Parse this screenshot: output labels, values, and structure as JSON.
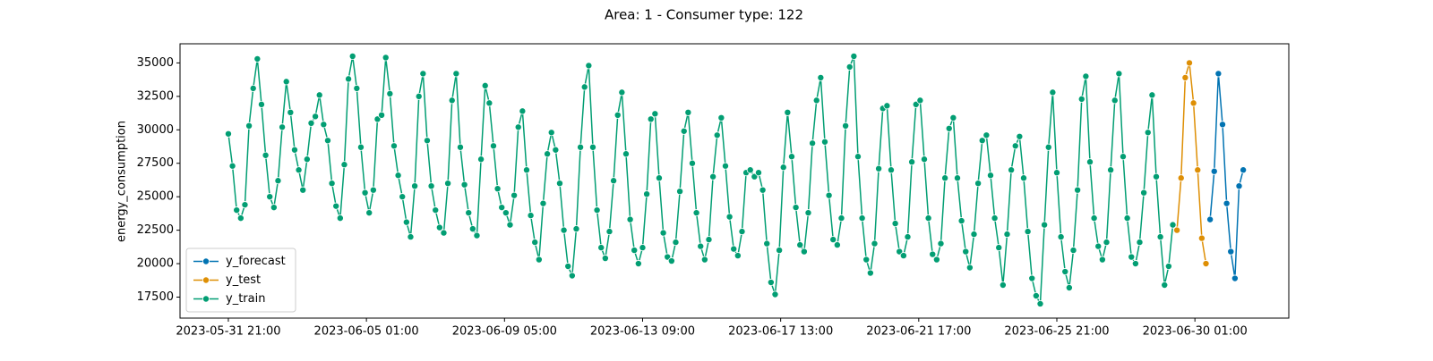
{
  "chart_data": {
    "type": "line",
    "title": "Area: 1 - Consumer type: 122",
    "ylabel": "energy_consumption",
    "xlim": [
      "2023-05-30 10:00",
      "2023-07-02 21:00"
    ],
    "xticks": [
      "2023-05-31 21:00",
      "2023-06-05 01:00",
      "2023-06-09 05:00",
      "2023-06-13 09:00",
      "2023-06-17 13:00",
      "2023-06-21 17:00",
      "2023-06-25 21:00",
      "2023-06-30 01:00"
    ],
    "ylim": [
      15930,
      36430
    ],
    "yticks": [
      17500,
      20000,
      22500,
      25000,
      27500,
      30000,
      32500,
      35000
    ],
    "legend": "lower left",
    "series": [
      {
        "name": "y_forecast",
        "color": "#0173b2",
        "x": [
          "2023-06-30 12:00",
          "2023-06-30 15:00",
          "2023-06-30 18:00",
          "2023-06-30 21:00",
          "2023-07-01 00:00",
          "2023-07-01 03:00",
          "2023-07-01 06:00",
          "2023-07-01 09:00",
          "2023-07-01 12:00"
        ],
        "values": [
          23300,
          26900,
          34200,
          30400,
          24500,
          20900,
          18900,
          25800,
          27000
        ]
      },
      {
        "name": "y_test",
        "color": "#de8f05",
        "x": [
          "2023-06-29 12:00",
          "2023-06-29 15:00",
          "2023-06-29 18:00",
          "2023-06-29 21:00",
          "2023-06-30 00:00",
          "2023-06-30 03:00",
          "2023-06-30 06:00",
          "2023-06-30 09:00"
        ],
        "values": [
          22500,
          26400,
          33900,
          35000,
          32000,
          27000,
          21900,
          20000
        ]
      },
      {
        "name": "y_train",
        "color": "#029e73",
        "x": [
          "2023-05-31 21:00",
          "2023-06-01 00:00",
          "2023-06-01 03:00",
          "2023-06-01 06:00",
          "2023-06-01 09:00",
          "2023-06-01 12:00",
          "2023-06-01 15:00",
          "2023-06-01 18:00",
          "2023-06-01 21:00",
          "2023-06-02 00:00",
          "2023-06-02 03:00",
          "2023-06-02 06:00",
          "2023-06-02 09:00",
          "2023-06-02 12:00",
          "2023-06-02 15:00",
          "2023-06-02 18:00",
          "2023-06-02 21:00",
          "2023-06-03 00:00",
          "2023-06-03 03:00",
          "2023-06-03 06:00",
          "2023-06-03 09:00",
          "2023-06-03 12:00",
          "2023-06-03 15:00",
          "2023-06-03 18:00",
          "2023-06-03 21:00",
          "2023-06-04 00:00",
          "2023-06-04 03:00",
          "2023-06-04 06:00",
          "2023-06-04 09:00",
          "2023-06-04 12:00",
          "2023-06-04 15:00",
          "2023-06-04 18:00",
          "2023-06-04 21:00",
          "2023-06-05 00:00",
          "2023-06-05 03:00",
          "2023-06-05 06:00",
          "2023-06-05 09:00",
          "2023-06-05 12:00",
          "2023-06-05 15:00",
          "2023-06-05 18:00",
          "2023-06-05 21:00",
          "2023-06-06 00:00",
          "2023-06-06 03:00",
          "2023-06-06 06:00",
          "2023-06-06 09:00",
          "2023-06-06 12:00",
          "2023-06-06 15:00",
          "2023-06-06 18:00",
          "2023-06-06 21:00",
          "2023-06-07 00:00",
          "2023-06-07 03:00",
          "2023-06-07 06:00",
          "2023-06-07 09:00",
          "2023-06-07 12:00",
          "2023-06-07 15:00",
          "2023-06-07 18:00",
          "2023-06-07 21:00",
          "2023-06-08 00:00",
          "2023-06-08 03:00",
          "2023-06-08 06:00",
          "2023-06-08 09:00",
          "2023-06-08 12:00",
          "2023-06-08 15:00",
          "2023-06-08 18:00",
          "2023-06-08 21:00",
          "2023-06-09 00:00",
          "2023-06-09 03:00",
          "2023-06-09 06:00",
          "2023-06-09 09:00",
          "2023-06-09 12:00",
          "2023-06-09 15:00",
          "2023-06-09 18:00",
          "2023-06-09 21:00",
          "2023-06-10 00:00",
          "2023-06-10 03:00",
          "2023-06-10 06:00",
          "2023-06-10 09:00",
          "2023-06-10 12:00",
          "2023-06-10 15:00",
          "2023-06-10 18:00",
          "2023-06-10 21:00",
          "2023-06-11 00:00",
          "2023-06-11 03:00",
          "2023-06-11 06:00",
          "2023-06-11 09:00",
          "2023-06-11 12:00",
          "2023-06-11 15:00",
          "2023-06-11 18:00",
          "2023-06-11 21:00",
          "2023-06-12 00:00",
          "2023-06-12 03:00",
          "2023-06-12 06:00",
          "2023-06-12 09:00",
          "2023-06-12 12:00",
          "2023-06-12 15:00",
          "2023-06-12 18:00",
          "2023-06-12 21:00",
          "2023-06-13 00:00",
          "2023-06-13 03:00",
          "2023-06-13 06:00",
          "2023-06-13 09:00",
          "2023-06-13 12:00",
          "2023-06-13 15:00",
          "2023-06-13 18:00",
          "2023-06-13 21:00",
          "2023-06-14 00:00",
          "2023-06-14 03:00",
          "2023-06-14 06:00",
          "2023-06-14 09:00",
          "2023-06-14 12:00",
          "2023-06-14 15:00",
          "2023-06-14 18:00",
          "2023-06-14 21:00",
          "2023-06-15 00:00",
          "2023-06-15 03:00",
          "2023-06-15 06:00",
          "2023-06-15 09:00",
          "2023-06-15 12:00",
          "2023-06-15 15:00",
          "2023-06-15 18:00",
          "2023-06-15 21:00",
          "2023-06-16 00:00",
          "2023-06-16 03:00",
          "2023-06-16 06:00",
          "2023-06-16 09:00",
          "2023-06-16 12:00",
          "2023-06-16 15:00",
          "2023-06-16 18:00",
          "2023-06-16 21:00",
          "2023-06-17 00:00",
          "2023-06-17 03:00",
          "2023-06-17 06:00",
          "2023-06-17 09:00",
          "2023-06-17 12:00",
          "2023-06-17 15:00",
          "2023-06-17 18:00",
          "2023-06-17 21:00",
          "2023-06-18 00:00",
          "2023-06-18 03:00",
          "2023-06-18 06:00",
          "2023-06-18 09:00",
          "2023-06-18 12:00",
          "2023-06-18 15:00",
          "2023-06-18 18:00",
          "2023-06-18 21:00",
          "2023-06-19 00:00",
          "2023-06-19 03:00",
          "2023-06-19 06:00",
          "2023-06-19 09:00",
          "2023-06-19 12:00",
          "2023-06-19 15:00",
          "2023-06-19 18:00",
          "2023-06-19 21:00",
          "2023-06-20 00:00",
          "2023-06-20 03:00",
          "2023-06-20 06:00",
          "2023-06-20 09:00",
          "2023-06-20 12:00",
          "2023-06-20 15:00",
          "2023-06-20 18:00",
          "2023-06-20 21:00",
          "2023-06-21 00:00",
          "2023-06-21 03:00",
          "2023-06-21 06:00",
          "2023-06-21 09:00",
          "2023-06-21 12:00",
          "2023-06-21 15:00",
          "2023-06-21 18:00",
          "2023-06-21 21:00",
          "2023-06-22 00:00",
          "2023-06-22 03:00",
          "2023-06-22 06:00",
          "2023-06-22 09:00",
          "2023-06-22 12:00",
          "2023-06-22 15:00",
          "2023-06-22 18:00",
          "2023-06-22 21:00",
          "2023-06-23 00:00",
          "2023-06-23 03:00",
          "2023-06-23 06:00",
          "2023-06-23 09:00",
          "2023-06-23 12:00",
          "2023-06-23 15:00",
          "2023-06-23 18:00",
          "2023-06-23 21:00",
          "2023-06-24 00:00",
          "2023-06-24 03:00",
          "2023-06-24 06:00",
          "2023-06-24 09:00",
          "2023-06-24 12:00",
          "2023-06-24 15:00",
          "2023-06-24 18:00",
          "2023-06-24 21:00",
          "2023-06-25 00:00",
          "2023-06-25 03:00",
          "2023-06-25 06:00",
          "2023-06-25 09:00",
          "2023-06-25 12:00",
          "2023-06-25 15:00",
          "2023-06-25 18:00",
          "2023-06-25 21:00",
          "2023-06-26 00:00",
          "2023-06-26 03:00",
          "2023-06-26 06:00",
          "2023-06-26 09:00",
          "2023-06-26 12:00",
          "2023-06-26 15:00",
          "2023-06-26 18:00",
          "2023-06-26 21:00",
          "2023-06-27 00:00",
          "2023-06-27 03:00",
          "2023-06-27 06:00",
          "2023-06-27 09:00",
          "2023-06-27 12:00",
          "2023-06-27 15:00",
          "2023-06-27 18:00",
          "2023-06-27 21:00",
          "2023-06-28 00:00",
          "2023-06-28 03:00",
          "2023-06-28 06:00",
          "2023-06-28 09:00",
          "2023-06-28 12:00",
          "2023-06-28 15:00",
          "2023-06-28 18:00",
          "2023-06-28 21:00",
          "2023-06-29 00:00",
          "2023-06-29 03:00",
          "2023-06-29 06:00",
          "2023-06-29 09:00"
        ],
        "values": [
          29700,
          27300,
          24000,
          23400,
          24400,
          30300,
          33100,
          35300,
          31900,
          28100,
          25000,
          24200,
          26200,
          30200,
          33600,
          31300,
          28500,
          27000,
          25500,
          27800,
          30500,
          31000,
          32600,
          30400,
          29200,
          26000,
          24300,
          23400,
          27400,
          33800,
          35500,
          33100,
          28700,
          25300,
          23800,
          25500,
          30800,
          31100,
          35400,
          32700,
          28800,
          26600,
          25000,
          23100,
          22000,
          25800,
          32500,
          34200,
          29200,
          25800,
          24000,
          22700,
          22300,
          26000,
          32200,
          34200,
          28700,
          25900,
          23800,
          22600,
          22100,
          27800,
          33300,
          32000,
          28800,
          25600,
          24200,
          23800,
          22900,
          25100,
          30200,
          31400,
          27000,
          23600,
          21600,
          20300,
          24500,
          28200,
          29800,
          28500,
          26000,
          22500,
          19800,
          19100,
          22600,
          28700,
          33200,
          34800,
          28700,
          24000,
          21200,
          20400,
          22400,
          26200,
          31100,
          32800,
          28200,
          23300,
          21000,
          20000,
          21200,
          25200,
          30800,
          31200,
          26400,
          22300,
          20500,
          20200,
          21600,
          25400,
          29900,
          31300,
          27500,
          23800,
          21300,
          20300,
          21800,
          26500,
          29600,
          30900,
          27300,
          23500,
          21100,
          20600,
          22400,
          26800,
          27000,
          26500,
          26800,
          25500,
          21500,
          18600,
          17700,
          21000,
          27200,
          31300,
          28000,
          24200,
          21400,
          20900,
          23800,
          29000,
          32200,
          33900,
          29100,
          25100,
          21800,
          21400,
          23400,
          30300,
          34700,
          35500,
          28000,
          23400,
          20300,
          19300,
          21500,
          27100,
          31600,
          31800,
          27000,
          23000,
          20900,
          20600,
          22000,
          27600,
          31900,
          32200,
          27800,
          23400,
          20700,
          20300,
          21500,
          26400,
          30100,
          30900,
          26400,
          23200,
          20900,
          19700,
          22200,
          26000,
          29200,
          29600,
          26600,
          23400,
          21200,
          18400,
          22200,
          27000,
          28800,
          29500,
          26400,
          22400,
          18900,
          17600,
          17000,
          22900,
          28700,
          32800,
          26800,
          22000,
          19400,
          18200,
          21000,
          25500,
          32300,
          34000,
          27600,
          23400,
          21300,
          20300,
          21600,
          27000,
          32200,
          34200,
          28000,
          23400,
          20500,
          20000,
          21600,
          25300,
          29800,
          32600,
          26500,
          22000,
          18400,
          19800,
          22900
        ]
      }
    ]
  }
}
